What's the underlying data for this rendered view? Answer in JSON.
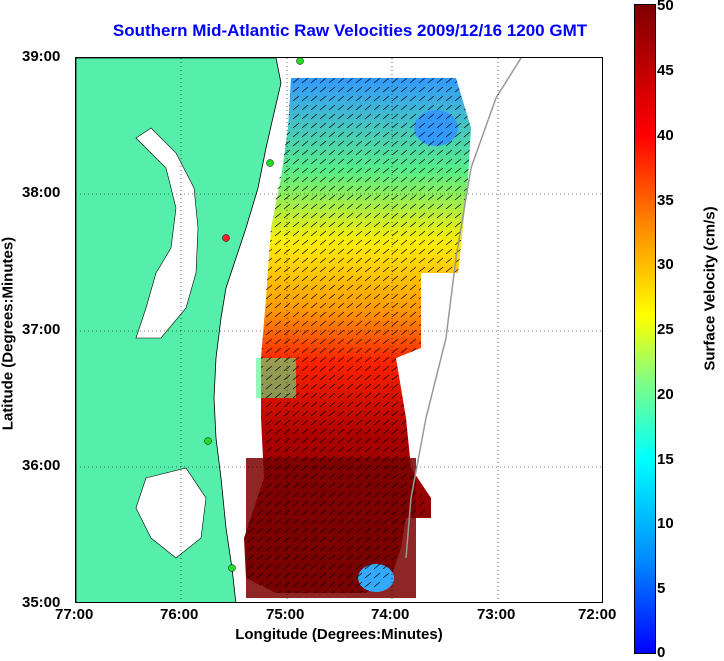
{
  "title": "Southern Mid-Atlantic Raw Velocities 2009/12/16 1200 GMT",
  "x_axis": {
    "label": "Longitude (Degrees:Minutes)",
    "ticks": [
      "77:00",
      "76:00",
      "75:00",
      "74:00",
      "73:00",
      "72:00"
    ]
  },
  "y_axis": {
    "label": "Latitude (Degrees:Minutes)",
    "ticks": [
      "39:00",
      "38:00",
      "37:00",
      "36:00",
      "35:00"
    ]
  },
  "colorbar": {
    "label": "Surface Velocity (cm/s)",
    "ticks": [
      "50",
      "45",
      "40",
      "35",
      "30",
      "25",
      "20",
      "15",
      "10",
      "5",
      "0"
    ],
    "min": 0,
    "max": 50
  },
  "colors": {
    "land": "#55eeaa",
    "title": "#0000ff",
    "station": "#22dd22",
    "station_alert": "#ff2222"
  },
  "map": {
    "lon_range": [
      -77,
      -72
    ],
    "lat_range": [
      35,
      39
    ],
    "grid": "dotted",
    "shown": "radar surface current velocity field with vectors over coastal ocean off Delmarva, Virginia and North Carolina"
  }
}
